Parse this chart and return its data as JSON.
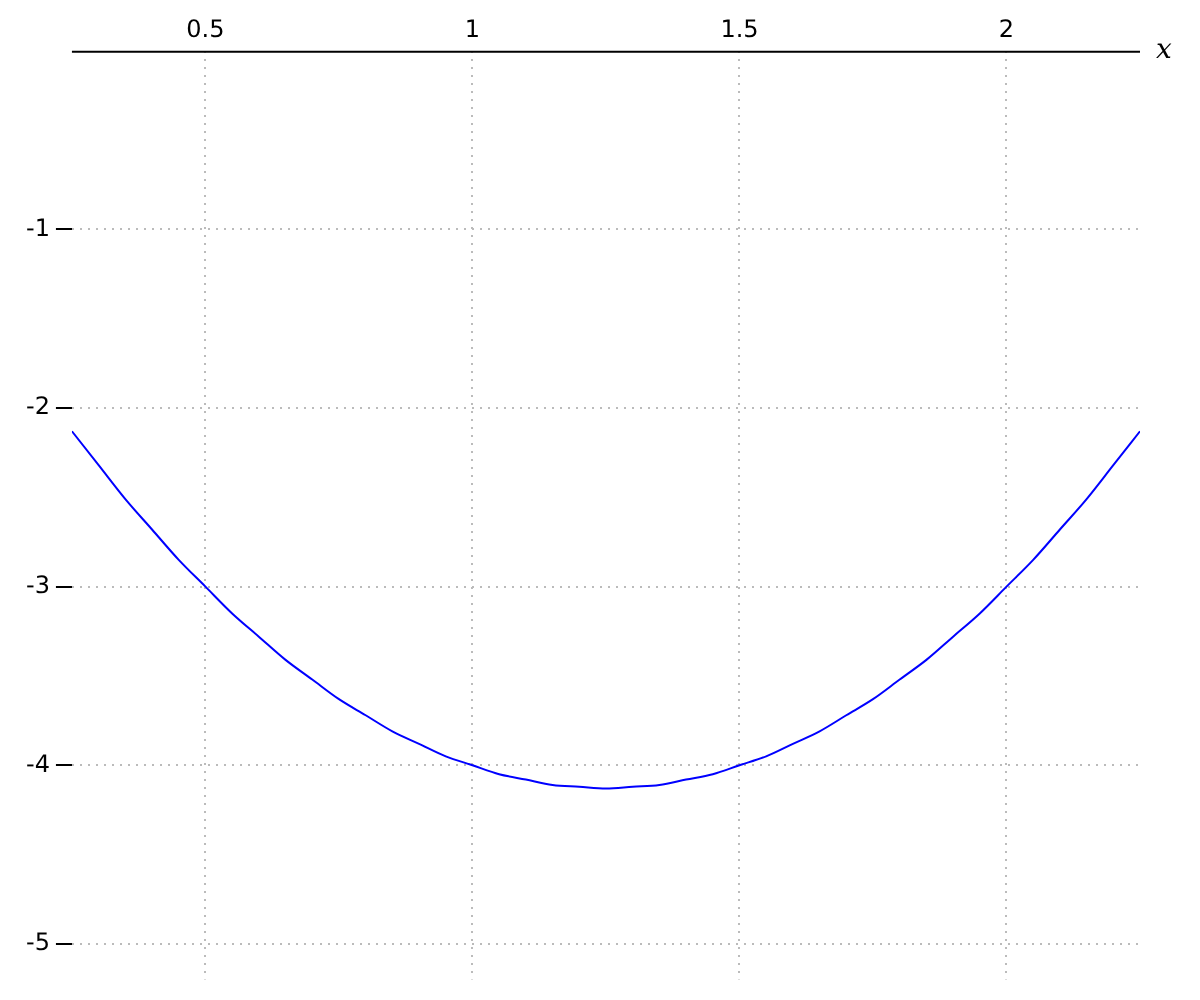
{
  "chart_data": {
    "type": "line",
    "xlabel": "x",
    "x": [
      0.25,
      0.3,
      0.35,
      0.4,
      0.45,
      0.5,
      0.55,
      0.6,
      0.65,
      0.7,
      0.75,
      0.8,
      0.85,
      0.9,
      0.95,
      1,
      1.05,
      1.1,
      1.15,
      1.2,
      1.25,
      1.3,
      1.35,
      1.4,
      1.45,
      1.5,
      1.55,
      1.6,
      1.65,
      1.7,
      1.75,
      1.8,
      1.85,
      1.9,
      1.95,
      2,
      2.05,
      2.1,
      2.15,
      2.2,
      2.25
    ],
    "series": [
      {
        "color": "#0000ff",
        "values": [
          -2.13,
          -2.32,
          -2.51,
          -2.68,
          -2.85,
          -3,
          -3.15,
          -3.28,
          -3.41,
          -3.52,
          -3.63,
          -3.72,
          -3.81,
          -3.88,
          -3.95,
          -4,
          -4.05,
          -4.08,
          -4.11,
          -4.12,
          -4.13,
          -4.12,
          -4.11,
          -4.08,
          -4.05,
          -4,
          -3.95,
          -3.88,
          -3.81,
          -3.72,
          -3.63,
          -3.52,
          -3.41,
          -3.28,
          -3.15,
          -3,
          -2.85,
          -2.68,
          -2.51,
          -2.32,
          -2.13
        ]
      }
    ],
    "xlim": [
      0.25,
      2.25
    ],
    "ylim": [
      -5.2,
      0
    ],
    "xticks": [
      0.5,
      1,
      1.5,
      2
    ],
    "yticks": [
      -1,
      -2,
      -3,
      -4,
      -5
    ],
    "grid": true,
    "marker": "none",
    "line_style": "solid",
    "legend": false
  }
}
